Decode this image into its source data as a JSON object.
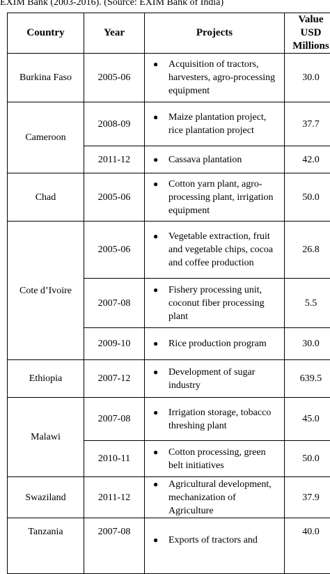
{
  "caption": "EXIM Bank (2003-2016). (Source: EXIM Bank of India)",
  "table": {
    "header": [
      "Country",
      "Year",
      "Projects",
      "Value USD Millions"
    ],
    "rows": [
      {
        "country": "Burkina Faso",
        "entries": [
          {
            "year": "2005-06",
            "project": "Acquisition of tractors, harvesters, agro-processing equipment",
            "value": "30.0"
          }
        ]
      },
      {
        "country": "Cameroon",
        "entries": [
          {
            "year": "2008-09",
            "project": "Maize plantation project, rice plantation project",
            "value": "37.7"
          },
          {
            "year": "2011-12",
            "project": "Cassava plantation",
            "value": "42.0"
          }
        ]
      },
      {
        "country": "Chad",
        "entries": [
          {
            "year": "2005-06",
            "project": "Cotton yarn plant, agro-processing plant, irrigation equipment",
            "value": "50.0"
          }
        ]
      },
      {
        "country": "Cote d’Ivoire",
        "entries": [
          {
            "year": "2005-06",
            "project": "Vegetable extraction, fruit and vegetable chips, cocoa and coffee production",
            "value": "26.8"
          },
          {
            "year": "2007-08",
            "project": "Fishery processing unit, coconut fiber processing plant",
            "value": "5.5"
          },
          {
            "year": "2009-10",
            "project": "Rice production program",
            "value": "30.0"
          }
        ]
      },
      {
        "country": "Ethiopia",
        "entries": [
          {
            "year": "2007-12",
            "project": "Development of sugar industry",
            "value": "639.5"
          }
        ]
      },
      {
        "country": "Malawi",
        "entries": [
          {
            "year": "2007-08",
            "project": "Irrigation storage, tobacco threshing plant",
            "value": "45.0"
          },
          {
            "year": "2010-11",
            "project": "Cotton processing, green belt initiatives",
            "value": "50.0"
          }
        ]
      },
      {
        "country": "Swaziland",
        "entries": [
          {
            "year": "2011-12",
            "project": "Agricultural development, mechanization of Agriculture",
            "value": "37.9"
          }
        ]
      },
      {
        "country": "Tanzania",
        "entries": [
          {
            "year": "2007-08",
            "project": "Exports of tractors and",
            "value": "40.0"
          }
        ]
      }
    ]
  }
}
